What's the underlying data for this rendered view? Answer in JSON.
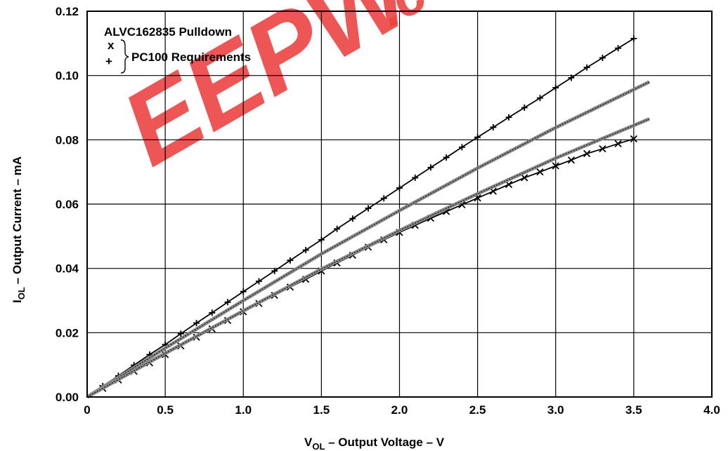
{
  "chart_data": {
    "type": "line",
    "xlabel": {
      "main": "V",
      "sub": "OL",
      "rest": " – Output Voltage – V"
    },
    "ylabel": {
      "main": "I",
      "sub": "OL",
      "rest": "– Output Current – mA"
    },
    "xlim": [
      0,
      4.0
    ],
    "ylim": [
      0,
      0.12
    ],
    "x_ticks": [
      "0",
      "0.5",
      "1.0",
      "1.5",
      "2.0",
      "2.5",
      "3.0",
      "3.5",
      "4.0"
    ],
    "y_ticks": [
      "0.00",
      "0.02",
      "0.04",
      "0.06",
      "0.08",
      "0.10",
      "0.12"
    ],
    "grid": true,
    "legend": {
      "title": "ALVC162835 Pulldown",
      "markers": [
        "x",
        "+"
      ],
      "label": "PC100 Requirements",
      "placement": "top-left"
    },
    "series": [
      {
        "marker": "plus",
        "color": "#000000",
        "x": [
          0.1,
          0.2,
          0.3,
          0.4,
          0.5,
          0.6,
          0.7,
          0.8,
          0.9,
          1.0,
          1.1,
          1.2,
          1.3,
          1.4,
          1.5,
          1.6,
          1.7,
          1.8,
          1.9,
          2.0,
          2.1,
          2.2,
          2.3,
          2.4,
          2.5,
          2.6,
          2.7,
          2.8,
          2.9,
          3.0,
          3.1,
          3.2,
          3.3,
          3.4,
          3.5
        ],
        "y": [
          0.0034,
          0.0066,
          0.0099,
          0.0132,
          0.0163,
          0.0197,
          0.023,
          0.0262,
          0.0295,
          0.0328,
          0.036,
          0.0392,
          0.0425,
          0.0457,
          0.0489,
          0.0523,
          0.0555,
          0.0587,
          0.0618,
          0.065,
          0.0682,
          0.0714,
          0.0745,
          0.0777,
          0.0808,
          0.0839,
          0.087,
          0.09,
          0.093,
          0.0962,
          0.0993,
          0.1025,
          0.1055,
          0.1085,
          0.1115
        ]
      },
      {
        "marker": "cross",
        "color": "#000000",
        "x": [
          0.1,
          0.2,
          0.3,
          0.4,
          0.5,
          0.6,
          0.7,
          0.8,
          0.9,
          1.0,
          1.1,
          1.2,
          1.3,
          1.4,
          1.5,
          1.6,
          1.7,
          1.8,
          1.9,
          2.0,
          2.1,
          2.2,
          2.3,
          2.4,
          2.5,
          2.6,
          2.7,
          2.8,
          2.9,
          3.0,
          3.1,
          3.2,
          3.3,
          3.4,
          3.5
        ],
        "y": [
          0.0027,
          0.0053,
          0.008,
          0.0106,
          0.0132,
          0.0159,
          0.0186,
          0.0212,
          0.0238,
          0.0265,
          0.0291,
          0.0316,
          0.0342,
          0.0366,
          0.0392,
          0.0417,
          0.0441,
          0.0466,
          0.0489,
          0.0512,
          0.0534,
          0.0556,
          0.0577,
          0.0598,
          0.0619,
          0.064,
          0.0661,
          0.0682,
          0.07,
          0.0719,
          0.0737,
          0.0757,
          0.0772,
          0.0788,
          0.0803
        ]
      },
      {
        "marker": "none",
        "color": "#555555",
        "band": true,
        "x": [
          0,
          0.5,
          1.0,
          1.5,
          2.0,
          2.5,
          3.0,
          3.6
        ],
        "y": [
          0,
          0.0152,
          0.03,
          0.0445,
          0.058,
          0.0712,
          0.0838,
          0.098
        ]
      },
      {
        "marker": "none",
        "color": "#555555",
        "band": true,
        "x": [
          0,
          0.5,
          1.0,
          1.5,
          2.0,
          2.5,
          3.0,
          3.6
        ],
        "y": [
          0,
          0.0136,
          0.0268,
          0.0398,
          0.0518,
          0.0632,
          0.0743,
          0.0865
        ]
      }
    ]
  },
  "watermark": {
    "text": "EEPW",
    "suffix": ".c",
    "color": "#e9302f"
  }
}
